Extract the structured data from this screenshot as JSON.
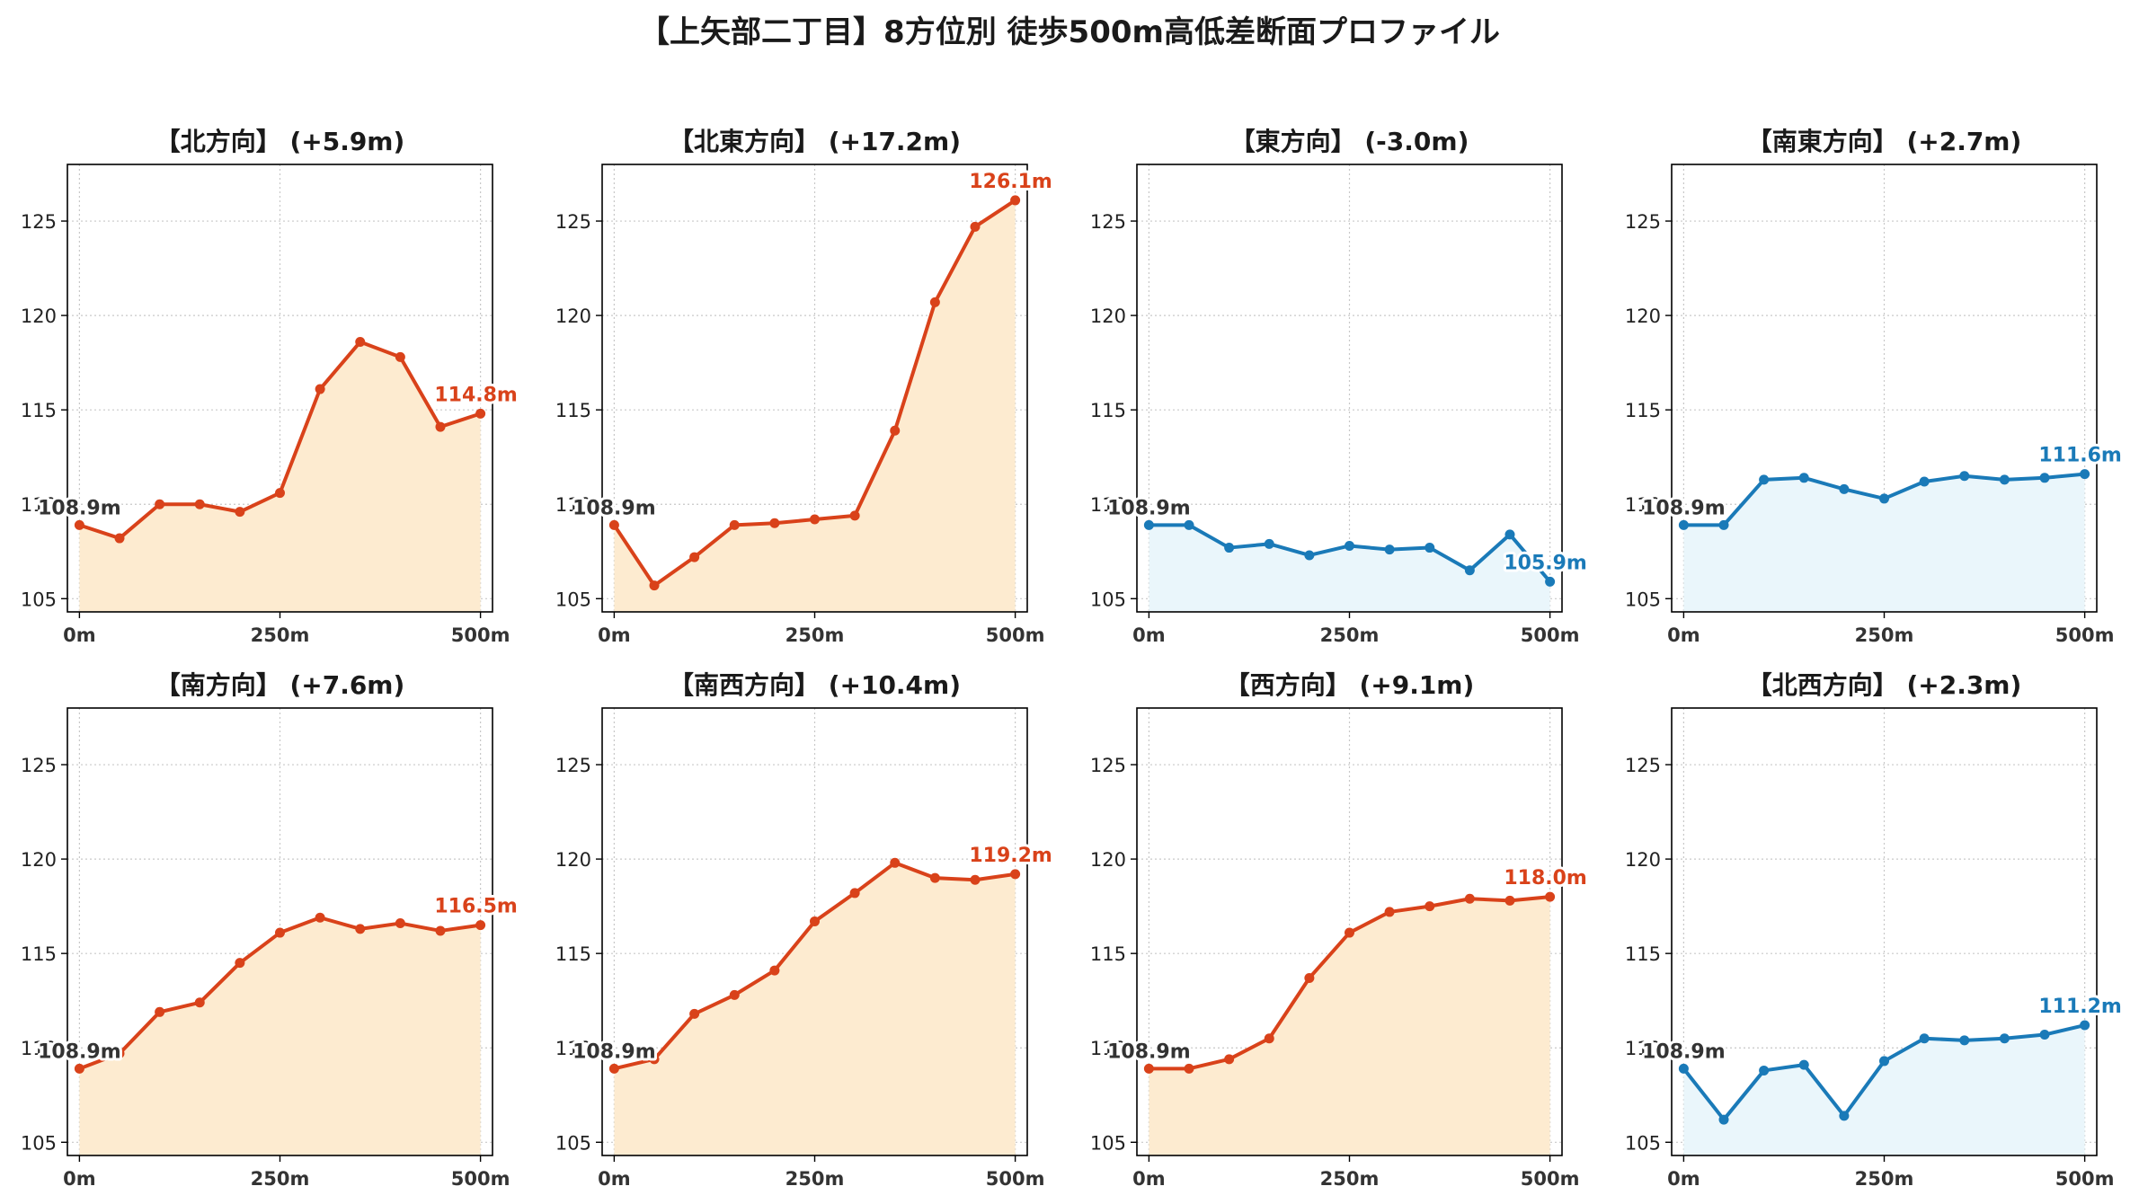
{
  "title": "【上矢部二丁目】8方位別 徒歩500m高低差断面プロファイル",
  "colors": {
    "up_line": "#d9421a",
    "up_fill": "#fdebd0",
    "down_line": "#1a7ab8",
    "down_fill": "#eaf6fb",
    "start_label": "#333333",
    "grid": "#c8c8c8",
    "axis": "#000000"
  },
  "chart_data": [
    {
      "type": "line",
      "title": "【北方向】 (+5.9m)",
      "start_label": "108.9m",
      "end_label": "114.8m",
      "trend": "up",
      "x": [
        0,
        50,
        100,
        150,
        200,
        250,
        300,
        350,
        400,
        450,
        500
      ],
      "y": [
        108.9,
        108.2,
        110.0,
        110.0,
        109.6,
        110.6,
        116.1,
        118.6,
        117.8,
        114.1,
        114.8
      ],
      "xticks": [
        "0m",
        "250m",
        "500m"
      ],
      "yticks": [
        105,
        110,
        115,
        120,
        125
      ],
      "xlim": [
        -15,
        515
      ],
      "ylim": [
        104.3,
        128
      ]
    },
    {
      "type": "line",
      "title": "【北東方向】 (+17.2m)",
      "start_label": "108.9m",
      "end_label": "126.1m",
      "trend": "up",
      "x": [
        0,
        50,
        100,
        150,
        200,
        250,
        300,
        350,
        400,
        450,
        500
      ],
      "y": [
        108.9,
        105.7,
        107.2,
        108.9,
        109.0,
        109.2,
        109.4,
        113.9,
        120.7,
        124.7,
        126.1
      ],
      "xticks": [
        "0m",
        "250m",
        "500m"
      ],
      "yticks": [
        105,
        110,
        115,
        120,
        125
      ],
      "xlim": [
        -15,
        515
      ],
      "ylim": [
        104.3,
        128
      ]
    },
    {
      "type": "line",
      "title": "【東方向】 (-3.0m)",
      "start_label": "108.9m",
      "end_label": "105.9m",
      "trend": "down",
      "x": [
        0,
        50,
        100,
        150,
        200,
        250,
        300,
        350,
        400,
        450,
        500
      ],
      "y": [
        108.9,
        108.9,
        107.7,
        107.9,
        107.3,
        107.8,
        107.6,
        107.7,
        106.5,
        108.4,
        105.9
      ],
      "xticks": [
        "0m",
        "250m",
        "500m"
      ],
      "yticks": [
        105,
        110,
        115,
        120,
        125
      ],
      "xlim": [
        -15,
        515
      ],
      "ylim": [
        104.3,
        128
      ]
    },
    {
      "type": "line",
      "title": "【南東方向】 (+2.7m)",
      "start_label": "108.9m",
      "end_label": "111.6m",
      "trend": "down",
      "x": [
        0,
        50,
        100,
        150,
        200,
        250,
        300,
        350,
        400,
        450,
        500
      ],
      "y": [
        108.9,
        108.9,
        111.3,
        111.4,
        110.8,
        110.3,
        111.2,
        111.5,
        111.3,
        111.4,
        111.6
      ],
      "xticks": [
        "0m",
        "250m",
        "500m"
      ],
      "yticks": [
        105,
        110,
        115,
        120,
        125
      ],
      "xlim": [
        -15,
        515
      ],
      "ylim": [
        104.3,
        128
      ]
    },
    {
      "type": "line",
      "title": "【南方向】 (+7.6m)",
      "start_label": "108.9m",
      "end_label": "116.5m",
      "trend": "up",
      "x": [
        0,
        50,
        100,
        150,
        200,
        250,
        300,
        350,
        400,
        450,
        500
      ],
      "y": [
        108.9,
        109.7,
        111.9,
        112.4,
        114.5,
        116.1,
        116.9,
        116.3,
        116.6,
        116.2,
        116.5
      ],
      "xticks": [
        "0m",
        "250m",
        "500m"
      ],
      "yticks": [
        105,
        110,
        115,
        120,
        125
      ],
      "xlim": [
        -15,
        515
      ],
      "ylim": [
        104.3,
        128
      ]
    },
    {
      "type": "line",
      "title": "【南西方向】 (+10.4m)",
      "start_label": "108.9m",
      "end_label": "119.2m",
      "trend": "up",
      "x": [
        0,
        50,
        100,
        150,
        200,
        250,
        300,
        350,
        400,
        450,
        500
      ],
      "y": [
        108.9,
        109.4,
        111.8,
        112.8,
        114.1,
        116.7,
        118.2,
        119.8,
        119.0,
        118.9,
        119.2
      ],
      "xticks": [
        "0m",
        "250m",
        "500m"
      ],
      "yticks": [
        105,
        110,
        115,
        120,
        125
      ],
      "xlim": [
        -15,
        515
      ],
      "ylim": [
        104.3,
        128
      ]
    },
    {
      "type": "line",
      "title": "【西方向】 (+9.1m)",
      "start_label": "108.9m",
      "end_label": "118.0m",
      "trend": "up",
      "x": [
        0,
        50,
        100,
        150,
        200,
        250,
        300,
        350,
        400,
        450,
        500
      ],
      "y": [
        108.9,
        108.9,
        109.4,
        110.5,
        113.7,
        116.1,
        117.2,
        117.5,
        117.9,
        117.8,
        118.0
      ],
      "xticks": [
        "0m",
        "250m",
        "500m"
      ],
      "yticks": [
        105,
        110,
        115,
        120,
        125
      ],
      "xlim": [
        -15,
        515
      ],
      "ylim": [
        104.3,
        128
      ]
    },
    {
      "type": "line",
      "title": "【北西方向】 (+2.3m)",
      "start_label": "108.9m",
      "end_label": "111.2m",
      "trend": "down",
      "x": [
        0,
        50,
        100,
        150,
        200,
        250,
        300,
        350,
        400,
        450,
        500
      ],
      "y": [
        108.9,
        106.2,
        108.8,
        109.1,
        106.4,
        109.3,
        110.5,
        110.4,
        110.5,
        110.7,
        111.2
      ],
      "xticks": [
        "0m",
        "250m",
        "500m"
      ],
      "yticks": [
        105,
        110,
        115,
        120,
        125
      ],
      "xlim": [
        -15,
        515
      ],
      "ylim": [
        104.3,
        128
      ]
    }
  ]
}
